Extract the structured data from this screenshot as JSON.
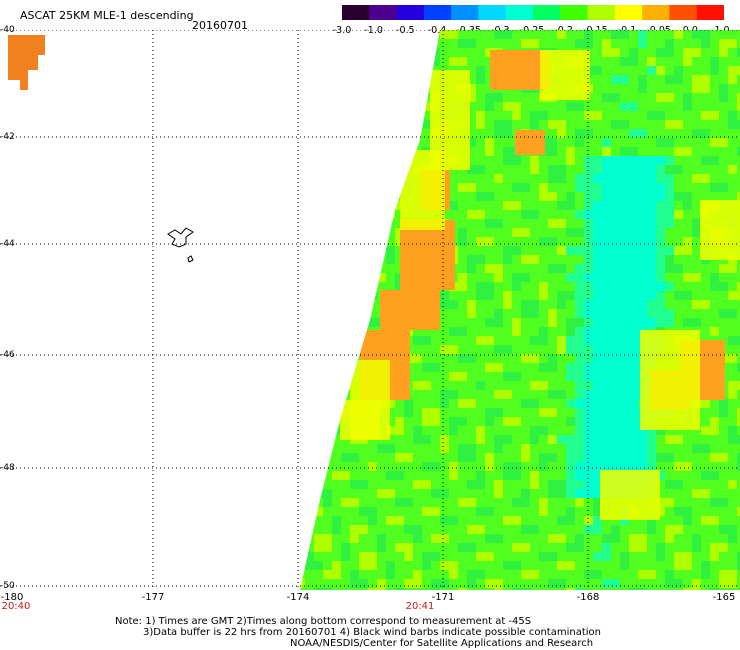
{
  "header": {
    "title": "ASCAT 25KM MLE-1 descending",
    "date": "20160701"
  },
  "colorbar": {
    "labels": [
      "-3.0",
      "-1.0",
      "-0.5",
      "-0.4",
      "-0.35",
      "-0.3",
      "-0.25",
      "-0.2",
      "-0.15",
      "-0.1",
      "-0.05",
      "0.0",
      "1.0"
    ],
    "colors": [
      "#2a0030",
      "#4b0090",
      "#2400e0",
      "#0040ff",
      "#0090ff",
      "#00d8ff",
      "#00ffd0",
      "#00ff60",
      "#40ff00",
      "#b0ff00",
      "#ffff00",
      "#ffb000",
      "#ff5000",
      "#ff1000"
    ]
  },
  "map": {
    "lat_labels": [
      "-40",
      "-42",
      "-44",
      "-46",
      "-48",
      "-50"
    ],
    "lon_labels": [
      "-180",
      "-177",
      "-174",
      "-171",
      "-168",
      "-165"
    ],
    "time_labels": [
      "20:40",
      "20:41"
    ]
  },
  "notes": [
    "Note: 1) Times are GMT 2)Times along bottom correspond to measurement at -45S",
    "3)Data buffer is 22 hrs from 20160701 4) Black wind barbs indicate possible contamination",
    "NOAA/NESDIS/Center for Satellite Applications and Research"
  ]
}
